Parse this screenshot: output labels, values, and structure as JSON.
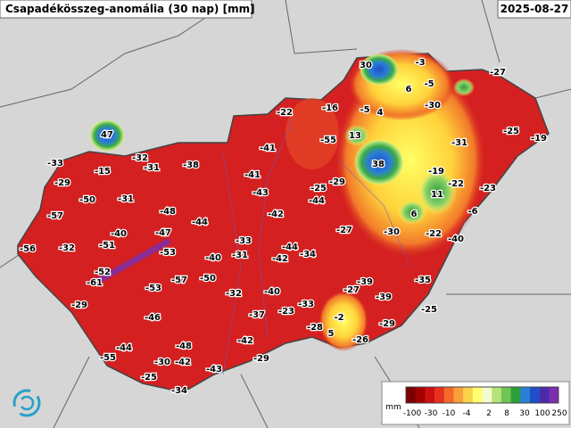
{
  "title": "Csapadékösszeg-anomália (30 nap) [mm]",
  "date": "2025-08-27",
  "station_values": [
    30,
    -3,
    -27,
    6,
    -5,
    -22,
    -16,
    -5,
    4,
    -30,
    -25,
    -19,
    47,
    13,
    -55,
    -31,
    -41,
    38,
    -33,
    -15,
    -32,
    -31,
    -38,
    -41,
    -19,
    -29,
    -29,
    -25,
    -22,
    -23,
    11,
    -50,
    -31,
    -43,
    -44,
    6,
    -6,
    -57,
    -48,
    -44,
    -42,
    -27,
    -30,
    -22,
    -40,
    -40,
    -47,
    -33,
    -44,
    -56,
    -32,
    -51,
    -53,
    -31,
    -42,
    -34,
    -40,
    -52,
    -61,
    -57,
    -50,
    -39,
    -35,
    -53,
    -27,
    -32,
    -40,
    -39,
    -29,
    -33,
    -37,
    -23,
    -25,
    -46,
    -2,
    -28,
    -29,
    -42,
    5,
    -26,
    -44,
    -48,
    -55,
    -30,
    -42,
    -29,
    -43,
    -25,
    -34
  ],
  "legend": {
    "unit": "mm",
    "labels": [
      -100,
      -30,
      -10,
      -4,
      2,
      8,
      30,
      100,
      250
    ],
    "colors": [
      "#7a0000",
      "#a30000",
      "#cc1010",
      "#e63020",
      "#f26a2a",
      "#f9a03a",
      "#fcd24a",
      "#ffff70",
      "#f4fbd0",
      "#b5e37a",
      "#6fc454",
      "#2e9e3c",
      "#2a7fd6",
      "#1f4fc8",
      "#4b2aa8",
      "#7a2fb0"
    ]
  }
}
